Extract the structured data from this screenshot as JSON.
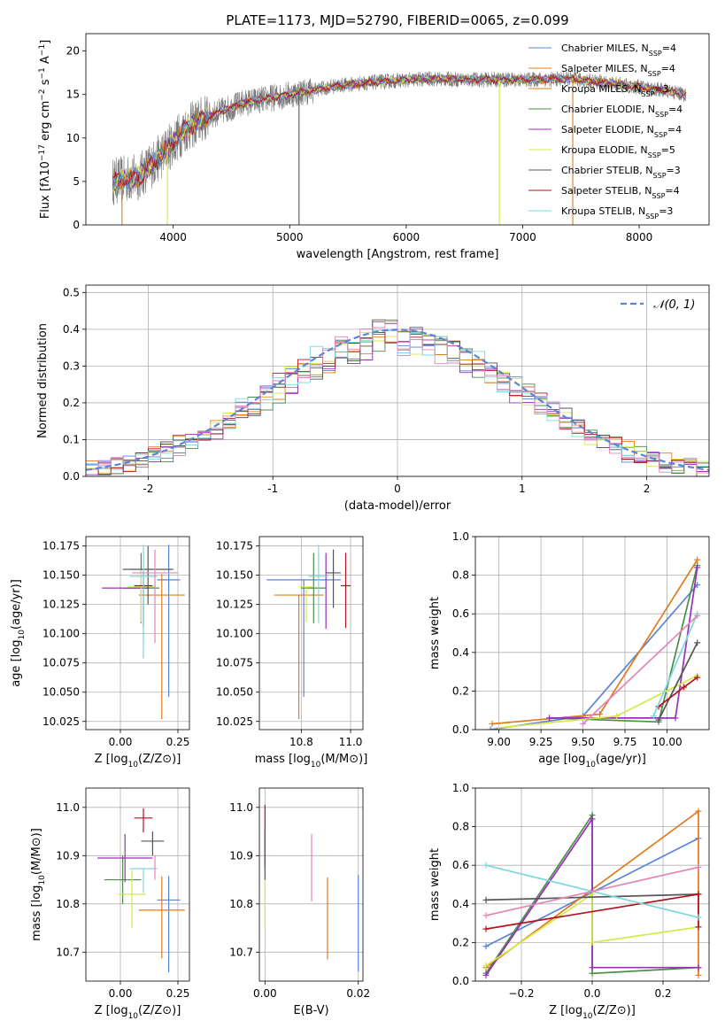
{
  "colors": {
    "blue": "#5b84d6",
    "orange": "#e07b1e",
    "green": "#4c8c4c",
    "purple": "#9b30b8",
    "lime": "#d4e84a",
    "gray": "#555555",
    "red": "#b0141e",
    "cyan": "#7ed7dc",
    "pink": "#e385b8"
  },
  "chart_data": [
    {
      "id": "spectrum",
      "type": "line",
      "title": "PLATE=1173, MJD=52790, FIBERID=0065, z=0.099",
      "xlabel": "wavelength [Angstrom, rest frame]",
      "ylabel": "Flux [fλ10⁻¹⁷ erg cm⁻² s⁻¹ A⁻¹]",
      "xlim": [
        3250,
        8600
      ],
      "ylim": [
        0,
        22
      ],
      "xticks": [
        4000,
        5000,
        6000,
        7000,
        8000
      ],
      "yticks": [
        0,
        5,
        10,
        15,
        20
      ],
      "legend_position": "right",
      "series": [
        {
          "name": "Chabrier MILES, N",
          "sub": "SSP",
          "suffix": "=4",
          "color": "blue"
        },
        {
          "name": "Salpeter MILES, N",
          "sub": "SSP",
          "suffix": "=4",
          "color": "orange"
        },
        {
          "name": "Kroupa MILES, N",
          "sub": "SSP",
          "suffix": "=3",
          "color": "orange"
        },
        {
          "name": "Chabrier ELODIE, N",
          "sub": "SSP",
          "suffix": "=4",
          "color": "green"
        },
        {
          "name": "Salpeter ELODIE, N",
          "sub": "SSP",
          "suffix": "=4",
          "color": "purple"
        },
        {
          "name": "Kroupa ELODIE, N",
          "sub": "SSP",
          "suffix": "=5",
          "color": "lime"
        },
        {
          "name": "Chabrier STELIB, N",
          "sub": "SSP",
          "suffix": "=3",
          "color": "gray"
        },
        {
          "name": "Salpeter STELIB, N",
          "sub": "SSP",
          "suffix": "=4",
          "color": "red"
        },
        {
          "name": "Kroupa STELIB, N",
          "sub": "SSP",
          "suffix": "=3",
          "color": "cyan"
        }
      ],
      "continuum": [
        [
          3480,
          5.0
        ],
        [
          3700,
          5.5
        ],
        [
          3900,
          8.0
        ],
        [
          4100,
          11.0
        ],
        [
          4300,
          12.5
        ],
        [
          4600,
          14.0
        ],
        [
          5000,
          15.0
        ],
        [
          5400,
          16.0
        ],
        [
          5800,
          16.5
        ],
        [
          6200,
          16.8
        ],
        [
          6600,
          16.7
        ],
        [
          7000,
          16.7
        ],
        [
          7400,
          16.8
        ],
        [
          7800,
          16.2
        ],
        [
          8200,
          15.5
        ],
        [
          8400,
          15.0
        ]
      ],
      "model_drops": [
        [
          3560,
          "orange"
        ],
        [
          3950,
          "lime"
        ],
        [
          5080,
          "gray"
        ],
        [
          6800,
          "lime"
        ],
        [
          7430,
          "orange"
        ]
      ]
    },
    {
      "id": "residuals",
      "type": "histogram",
      "xlabel": "(data-model)/error",
      "ylabel": "Normed distribution",
      "xlim": [
        -2.5,
        2.5
      ],
      "ylim": [
        0,
        0.52
      ],
      "xticks": [
        -2,
        -1,
        0,
        1,
        2
      ],
      "yticks": [
        0.0,
        0.1,
        0.2,
        0.3,
        0.4,
        0.5
      ],
      "legend": "𝒩(0, 1)",
      "legend_position": "top-right",
      "grid": true,
      "bin_width": 0.1,
      "gaussian": {
        "mean": 0,
        "sigma": 1
      }
    },
    {
      "id": "age-vs-Z",
      "type": "errorbar",
      "xlabel": "Z [log₁₀(Z/Z⊙)]",
      "ylabel": "age  [log₁₀(age/yr)]",
      "xlim": [
        -0.15,
        0.3
      ],
      "ylim": [
        10.018,
        10.183
      ],
      "xticks": [
        0.0,
        0.25
      ],
      "xticklabels": [
        "0.00",
        "0.25"
      ],
      "yticks": [
        10.025,
        10.05,
        10.075,
        10.1,
        10.125,
        10.15,
        10.175
      ],
      "grid": true,
      "points": [
        {
          "color": "blue",
          "x": 0.21,
          "y": 10.146,
          "xerr": 0.05,
          "yerr_lo": 0.1,
          "yerr_hi": 0.03
        },
        {
          "color": "orange",
          "x": 0.18,
          "y": 10.133,
          "xerr": 0.1,
          "yerr_lo": 0.106,
          "yerr_hi": 0.018
        },
        {
          "color": "green",
          "x": 0.09,
          "y": 10.139,
          "xerr": 0.08,
          "yerr_lo": 0.03,
          "yerr_hi": 0.03
        },
        {
          "color": "purple",
          "x": 0.02,
          "y": 10.139,
          "xerr": 0.1,
          "yerr_lo": 0.0,
          "yerr_hi": 0.0
        },
        {
          "color": "lime",
          "x": 0.09,
          "y": 10.14,
          "xerr": 0.06,
          "yerr_lo": 0.03,
          "yerr_hi": 0.015
        },
        {
          "color": "gray",
          "x": 0.12,
          "y": 10.155,
          "xerr": 0.11,
          "yerr_lo": 0.03,
          "yerr_hi": 0.02
        },
        {
          "color": "red",
          "x": 0.1,
          "y": 10.141,
          "xerr": 0.04,
          "yerr_lo": 0.035,
          "yerr_hi": 0.012
        },
        {
          "color": "cyan",
          "x": 0.1,
          "y": 10.149,
          "xerr": 0.06,
          "yerr_lo": 0.07,
          "yerr_hi": 0.027
        },
        {
          "color": "pink",
          "x": 0.15,
          "y": 10.152,
          "xerr": 0.1,
          "yerr_lo": 0.06,
          "yerr_hi": 0.02
        }
      ]
    },
    {
      "id": "age-vs-mass",
      "type": "errorbar",
      "xlabel": "mass [log₁₀(M/M⊙)]",
      "xlim": [
        10.63,
        11.05
      ],
      "ylim": [
        10.018,
        10.183
      ],
      "xticks": [
        10.8,
        11.0
      ],
      "xticklabels": [
        "10.8",
        "11.0"
      ],
      "yticks": [
        10.025,
        10.05,
        10.075,
        10.1,
        10.125,
        10.15,
        10.175
      ],
      "grid": true,
      "points": [
        {
          "color": "blue",
          "x": 10.81,
          "y": 10.146,
          "xerr": 0.15,
          "yerr_lo": 0.1,
          "yerr_hi": 0.0
        },
        {
          "color": "orange",
          "x": 10.79,
          "y": 10.133,
          "xerr": 0.1,
          "yerr_lo": 0.106,
          "yerr_hi": 0.0
        },
        {
          "color": "green",
          "x": 10.85,
          "y": 10.139,
          "xerr": 0.05,
          "yerr_lo": 0.03,
          "yerr_hi": 0.03
        },
        {
          "color": "purple",
          "x": 10.9,
          "y": 10.139,
          "xerr": 0.0,
          "yerr_lo": 0.035,
          "yerr_hi": 0.03
        },
        {
          "color": "lime",
          "x": 10.82,
          "y": 10.14,
          "xerr": 0.03,
          "yerr_lo": 0.03,
          "yerr_hi": 0.0
        },
        {
          "color": "gray",
          "x": 10.93,
          "y": 10.152,
          "xerr": 0.03,
          "yerr_lo": 0.03,
          "yerr_hi": 0.02
        },
        {
          "color": "red",
          "x": 10.98,
          "y": 10.141,
          "xerr": 0.02,
          "yerr_lo": 0.036,
          "yerr_hi": 0.028
        },
        {
          "color": "cyan",
          "x": 10.87,
          "y": 10.149,
          "xerr": 0.04,
          "yerr_lo": 0.04,
          "yerr_hi": 0.027
        },
        {
          "color": "pink",
          "x": 10.9,
          "y": 10.152,
          "xerr": 0.0,
          "yerr_lo": 0.0,
          "yerr_hi": 0.0
        }
      ]
    },
    {
      "id": "weight-vs-age",
      "type": "line",
      "xlabel": "age  [log₁₀(age/yr)]",
      "ylabel": "mass weight",
      "xlim": [
        8.86,
        10.25
      ],
      "ylim": [
        0,
        1.0
      ],
      "xticks": [
        9.0,
        9.25,
        9.5,
        9.75,
        10.0
      ],
      "xticklabels": [
        "9.00",
        "9.25",
        "9.50",
        "9.75",
        "10.00"
      ],
      "yticks": [
        0.0,
        0.2,
        0.4,
        0.6,
        0.8,
        1.0
      ],
      "grid": true,
      "series": [
        {
          "color": "blue",
          "x": [
            8.95,
            9.5,
            10.18
          ],
          "y": [
            0.0,
            0.07,
            0.75
          ]
        },
        {
          "color": "orange",
          "x": [
            8.96,
            9.6,
            10.18
          ],
          "y": [
            0.03,
            0.08,
            0.88
          ]
        },
        {
          "color": "green",
          "x": [
            9.3,
            9.95,
            10.18
          ],
          "y": [
            0.06,
            0.04,
            0.85
          ]
        },
        {
          "color": "purple",
          "x": [
            9.3,
            10.05,
            10.18
          ],
          "y": [
            0.06,
            0.06,
            0.84
          ]
        },
        {
          "color": "lime",
          "x": [
            9.0,
            9.7,
            10.18
          ],
          "y": [
            0.01,
            0.07,
            0.28
          ]
        },
        {
          "color": "gray",
          "x": [
            9.95,
            10.18
          ],
          "y": [
            0.05,
            0.45
          ]
        },
        {
          "color": "red",
          "x": [
            9.95,
            10.1,
            10.18
          ],
          "y": [
            0.12,
            0.22,
            0.27
          ]
        },
        {
          "color": "cyan",
          "x": [
            9.92,
            10.18
          ],
          "y": [
            0.07,
            0.6
          ]
        },
        {
          "color": "pink",
          "x": [
            9.5,
            10.18
          ],
          "y": [
            0.03,
            0.59
          ]
        }
      ]
    },
    {
      "id": "mass-vs-Z",
      "type": "errorbar",
      "xlabel": "Z [log₁₀(Z/Z⊙)]",
      "ylabel": "mass [log₁₀(M/M⊙)]",
      "xlim": [
        -0.15,
        0.3
      ],
      "ylim": [
        10.64,
        11.04
      ],
      "xticks": [
        0.0,
        0.25
      ],
      "xticklabels": [
        "0.00",
        "0.25"
      ],
      "yticks": [
        10.7,
        10.8,
        10.9,
        11.0
      ],
      "grid": true,
      "points": [
        {
          "color": "blue",
          "x": 0.21,
          "y": 10.808,
          "xerr": 0.05,
          "yerr_lo": 0.15,
          "yerr_hi": 0.05
        },
        {
          "color": "orange",
          "x": 0.18,
          "y": 10.787,
          "xerr": 0.1,
          "yerr_lo": 0.1,
          "yerr_hi": 0.07
        },
        {
          "color": "green",
          "x": 0.01,
          "y": 10.85,
          "xerr": 0.08,
          "yerr_lo": 0.05,
          "yerr_hi": 0.05
        },
        {
          "color": "purple",
          "x": 0.02,
          "y": 10.895,
          "xerr": 0.12,
          "yerr_lo": 0.05,
          "yerr_hi": 0.05
        },
        {
          "color": "lime",
          "x": 0.05,
          "y": 10.82,
          "xerr": 0.06,
          "yerr_lo": 0.07,
          "yerr_hi": 0.05
        },
        {
          "color": "gray",
          "x": 0.14,
          "y": 10.93,
          "xerr": 0.05,
          "yerr_lo": 0.03,
          "yerr_hi": 0.02
        },
        {
          "color": "red",
          "x": 0.1,
          "y": 10.978,
          "xerr": 0.04,
          "yerr_lo": 0.03,
          "yerr_hi": 0.02
        },
        {
          "color": "cyan",
          "x": 0.1,
          "y": 10.873,
          "xerr": 0.06,
          "yerr_lo": 0.05,
          "yerr_hi": 0.0
        },
        {
          "color": "pink",
          "x": 0.15,
          "y": 10.9,
          "xerr": 0.0,
          "yerr_lo": 0.05,
          "yerr_hi": 0.0
        }
      ]
    },
    {
      "id": "mass-vs-ebv",
      "type": "errorbar",
      "xlabel": "E(B-V)",
      "xlim": [
        -0.0012,
        0.021
      ],
      "ylim": [
        10.64,
        11.04
      ],
      "xticks": [
        0.0,
        0.02
      ],
      "xticklabels": [
        "0.00",
        "0.02"
      ],
      "yticks": [
        10.7,
        10.8,
        10.9,
        11.0
      ],
      "grid": true,
      "points": [
        {
          "color": "blue",
          "x": 0.02,
          "y": 10.76,
          "xerr": 0,
          "yerr_lo": 0.1,
          "yerr_hi": 0.1
        },
        {
          "color": "orange",
          "x": 0.0134,
          "y": 10.77,
          "xerr": 0,
          "yerr_lo": 0.085,
          "yerr_hi": 0.085
        },
        {
          "color": "pink",
          "x": 0.01,
          "y": 10.875,
          "xerr": 0,
          "yerr_lo": 0.07,
          "yerr_hi": 0.07
        },
        {
          "color": "red",
          "x": 0.0,
          "y": 10.94,
          "xerr": 0,
          "yerr_lo": 0.065,
          "yerr_hi": 0.065
        },
        {
          "color": "gray",
          "x": 0.0,
          "y": 10.9,
          "xerr": 0,
          "yerr_lo": 0.05,
          "yerr_hi": 0.05
        },
        {
          "color": "lime",
          "x": 0.0,
          "y": 10.8,
          "xerr": 0,
          "yerr_lo": 0.05,
          "yerr_hi": 0.05
        }
      ]
    },
    {
      "id": "weight-vs-Z",
      "type": "line",
      "xlabel": "Z [log₁₀(Z/Z⊙)]",
      "ylabel": "mass weight",
      "xlim": [
        -0.33,
        0.33
      ],
      "ylim": [
        0,
        1.0
      ],
      "xticks": [
        -0.2,
        0.0,
        0.2
      ],
      "xticklabels": [
        "−0.2",
        "0.0",
        "0.2"
      ],
      "yticks": [
        0.0,
        0.2,
        0.4,
        0.6,
        0.8,
        1.0
      ],
      "grid": true,
      "series": [
        {
          "color": "blue",
          "x": [
            -0.3,
            0.3
          ],
          "y": [
            0.18,
            0.74
          ]
        },
        {
          "color": "orange",
          "x": [
            -0.3,
            0.3,
            0.3
          ],
          "y": [
            0.07,
            0.88,
            0.03
          ]
        },
        {
          "color": "green",
          "x": [
            -0.3,
            0.0,
            0.0,
            0.3
          ],
          "y": [
            0.04,
            0.86,
            0.04,
            0.07
          ]
        },
        {
          "color": "purple",
          "x": [
            -0.3,
            0.0,
            0.0,
            0.3
          ],
          "y": [
            0.03,
            0.84,
            0.07,
            0.07
          ]
        },
        {
          "color": "lime",
          "x": [
            -0.3,
            0.0,
            0.0,
            0.3
          ],
          "y": [
            0.08,
            0.45,
            0.2,
            0.28
          ]
        },
        {
          "color": "gray",
          "x": [
            -0.3,
            0.3
          ],
          "y": [
            0.42,
            0.45
          ]
        },
        {
          "color": "red",
          "x": [
            -0.3,
            0.3,
            0.3
          ],
          "y": [
            0.27,
            0.45,
            0.28
          ]
        },
        {
          "color": "cyan",
          "x": [
            -0.3,
            0.3
          ],
          "y": [
            0.6,
            0.33
          ]
        },
        {
          "color": "pink",
          "x": [
            -0.3,
            0.3
          ],
          "y": [
            0.34,
            0.59
          ]
        }
      ]
    }
  ]
}
